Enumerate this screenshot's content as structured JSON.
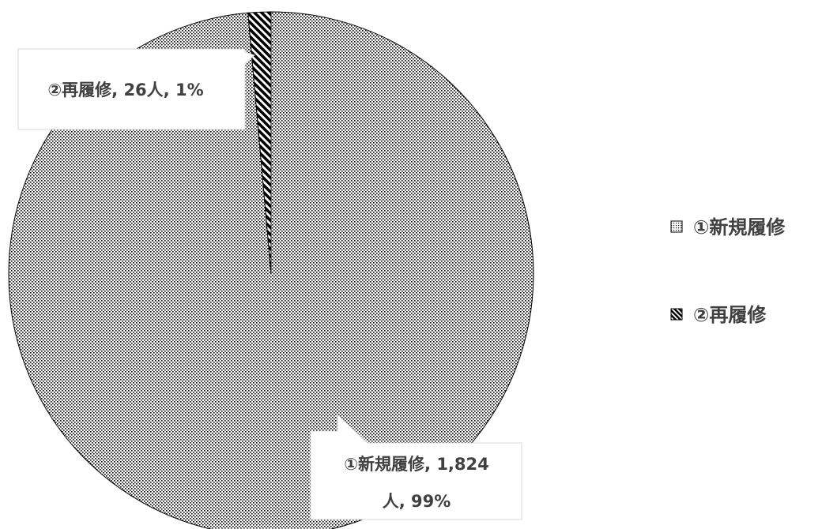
{
  "chart_data": {
    "type": "pie",
    "title": "",
    "slices": [
      {
        "label": "①新規履修",
        "value": 1824,
        "percent": 99,
        "pattern": "dotted",
        "data_label_lines": [
          "①新規履修, 1,824",
          "人, 99%"
        ]
      },
      {
        "label": "②再履修",
        "value": 26,
        "percent": 1,
        "pattern": "diagonal-stripes",
        "data_label_lines": [
          "②再履修, 26人, 1%"
        ]
      }
    ],
    "legend": {
      "placement": "right",
      "entries": [
        "①新規履修",
        "②再履修"
      ]
    },
    "colors": {
      "pattern_fg": "#000000",
      "pattern_bg": "#ffffff",
      "text": "#404040",
      "callout_border": "#d9d9d9"
    }
  }
}
